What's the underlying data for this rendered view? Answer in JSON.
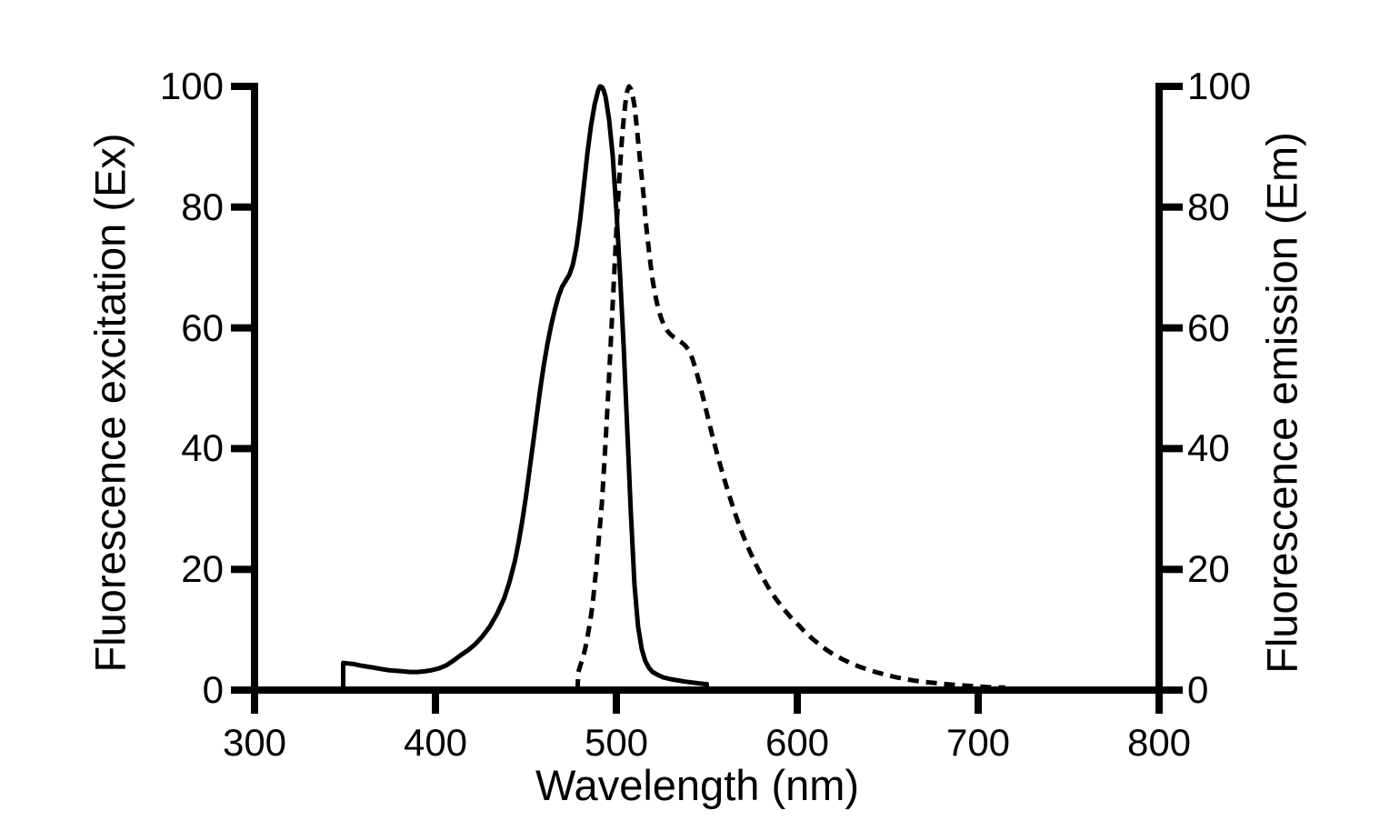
{
  "colors": {
    "foreground": "#000000",
    "background": "#ffffff"
  },
  "chart_data": {
    "type": "line",
    "title": "",
    "xlabel": "Wavelength (nm)",
    "ylabel_left": "Fluorescence excitation (Ex)",
    "ylabel_right": "Fluorescence emission (Em)",
    "xlim": [
      300,
      800
    ],
    "ylim": [
      0,
      100
    ],
    "x_ticks": [
      300,
      400,
      500,
      600,
      700,
      800
    ],
    "y_ticks_left": [
      0,
      20,
      40,
      60,
      80,
      100
    ],
    "y_ticks_right": [
      0,
      20,
      40,
      60,
      80,
      100
    ],
    "grid": false,
    "legend": "none",
    "series": [
      {
        "name": "fluorescence-excitation",
        "label": "Fluorescence excitation (Ex)",
        "axis": "left",
        "line_style": "solid",
        "color": "#000000",
        "peak_nm": 491,
        "points": [
          [
            349,
            0
          ],
          [
            349,
            4.5
          ],
          [
            352,
            4.4
          ],
          [
            355,
            4.3
          ],
          [
            358,
            4.1
          ],
          [
            362,
            3.9
          ],
          [
            366,
            3.7
          ],
          [
            370,
            3.5
          ],
          [
            374,
            3.3
          ],
          [
            378,
            3.2
          ],
          [
            382,
            3.1
          ],
          [
            386,
            3.0
          ],
          [
            390,
            3.0
          ],
          [
            394,
            3.1
          ],
          [
            398,
            3.3
          ],
          [
            402,
            3.6
          ],
          [
            406,
            4.1
          ],
          [
            410,
            4.9
          ],
          [
            414,
            5.8
          ],
          [
            418,
            6.6
          ],
          [
            422,
            7.6
          ],
          [
            426,
            8.9
          ],
          [
            430,
            10.5
          ],
          [
            434,
            12.6
          ],
          [
            438,
            15.2
          ],
          [
            441,
            18
          ],
          [
            444,
            21.5
          ],
          [
            446,
            24.5
          ],
          [
            448,
            28
          ],
          [
            450,
            32
          ],
          [
            452,
            36.5
          ],
          [
            454,
            41
          ],
          [
            456,
            45.5
          ],
          [
            458,
            50
          ],
          [
            460,
            54
          ],
          [
            462,
            57.5
          ],
          [
            464,
            60.5
          ],
          [
            466,
            63
          ],
          [
            468,
            65.2
          ],
          [
            470,
            66.8
          ],
          [
            472,
            67.8
          ],
          [
            474,
            68.8
          ],
          [
            476,
            70.5
          ],
          [
            478,
            73.5
          ],
          [
            480,
            78
          ],
          [
            482,
            83.5
          ],
          [
            484,
            89
          ],
          [
            486,
            93.5
          ],
          [
            488,
            97
          ],
          [
            490,
            99.4
          ],
          [
            491,
            100
          ],
          [
            492,
            99.9
          ],
          [
            493,
            99.3
          ],
          [
            494,
            98.3
          ],
          [
            496,
            94.5
          ],
          [
            498,
            88.5
          ],
          [
            500,
            79.5
          ],
          [
            502,
            69
          ],
          [
            504,
            57
          ],
          [
            506,
            43.5
          ],
          [
            508,
            29.5
          ],
          [
            510,
            17.5
          ],
          [
            512,
            10.5
          ],
          [
            514,
            6.8
          ],
          [
            516,
            4.8
          ],
          [
            518,
            3.7
          ],
          [
            520,
            3.0
          ],
          [
            523,
            2.5
          ],
          [
            526,
            2.1
          ],
          [
            530,
            1.8
          ],
          [
            534,
            1.6
          ],
          [
            538,
            1.4
          ],
          [
            542,
            1.25
          ],
          [
            546,
            1.1
          ],
          [
            549,
            1.0
          ],
          [
            550,
            1.0
          ],
          [
            550,
            0
          ]
        ]
      },
      {
        "name": "fluorescence-emission",
        "label": "Fluorescence emission (Em)",
        "axis": "right",
        "line_style": "dashed",
        "color": "#000000",
        "peak_nm": 507,
        "points": [
          [
            478.5,
            0
          ],
          [
            479,
            3.0
          ],
          [
            480,
            4.0
          ],
          [
            481,
            4.9
          ],
          [
            482,
            5.9
          ],
          [
            483,
            7.2
          ],
          [
            484,
            8.8
          ],
          [
            485,
            10.5
          ],
          [
            486,
            12.3
          ],
          [
            487,
            14.5
          ],
          [
            488,
            17.5
          ],
          [
            489,
            20.5
          ],
          [
            490,
            24
          ],
          [
            491,
            27.5
          ],
          [
            492,
            31
          ],
          [
            493,
            36
          ],
          [
            494,
            41
          ],
          [
            495,
            46.5
          ],
          [
            496,
            52
          ],
          [
            497,
            58
          ],
          [
            498,
            64
          ],
          [
            499,
            70
          ],
          [
            500,
            76
          ],
          [
            501,
            81.5
          ],
          [
            502,
            86.5
          ],
          [
            503,
            91
          ],
          [
            504,
            94.5
          ],
          [
            505,
            97.3
          ],
          [
            506,
            99.2
          ],
          [
            507,
            100
          ],
          [
            508,
            99.6
          ],
          [
            509,
            98.5
          ],
          [
            510,
            96.8
          ],
          [
            511,
            94
          ],
          [
            512,
            91
          ],
          [
            513,
            88
          ],
          [
            514,
            85
          ],
          [
            515,
            82
          ],
          [
            516,
            78.5
          ],
          [
            517,
            75.5
          ],
          [
            518,
            72.8
          ],
          [
            519,
            70.3
          ],
          [
            520,
            68
          ],
          [
            521,
            66.2
          ],
          [
            522,
            64.7
          ],
          [
            523,
            63.4
          ],
          [
            524,
            62.3
          ],
          [
            525,
            61.4
          ],
          [
            526,
            60.7
          ],
          [
            527,
            60.1
          ],
          [
            528,
            59.6
          ],
          [
            529,
            59.2
          ],
          [
            530,
            58.9
          ],
          [
            532,
            58.4
          ],
          [
            534,
            58.0
          ],
          [
            536,
            57.6
          ],
          [
            538,
            57.1
          ],
          [
            540,
            56.3
          ],
          [
            542,
            54.9
          ],
          [
            544,
            53
          ],
          [
            546,
            50.8
          ],
          [
            548,
            48.4
          ],
          [
            550,
            45.9
          ],
          [
            553,
            42.2
          ],
          [
            556,
            38.8
          ],
          [
            559,
            35.6
          ],
          [
            562,
            32.6
          ],
          [
            565,
            29.8
          ],
          [
            568,
            27.2
          ],
          [
            571,
            24.9
          ],
          [
            574,
            22.8
          ],
          [
            577,
            20.9
          ],
          [
            580,
            19.1
          ],
          [
            584,
            17
          ],
          [
            588,
            15.2
          ],
          [
            592,
            13.6
          ],
          [
            596,
            12.2
          ],
          [
            600,
            11
          ],
          [
            604,
            9.7
          ],
          [
            608,
            8.6
          ],
          [
            612,
            7.6
          ],
          [
            616,
            6.7
          ],
          [
            620,
            5.9
          ],
          [
            625,
            5.1
          ],
          [
            630,
            4.4
          ],
          [
            635,
            3.8
          ],
          [
            640,
            3.3
          ],
          [
            645,
            2.85
          ],
          [
            650,
            2.45
          ],
          [
            655,
            2.1
          ],
          [
            660,
            1.8
          ],
          [
            665,
            1.55
          ],
          [
            670,
            1.35
          ],
          [
            675,
            1.2
          ],
          [
            680,
            1.05
          ],
          [
            685,
            0.9
          ],
          [
            690,
            0.8
          ],
          [
            695,
            0.7
          ],
          [
            700,
            0.6
          ],
          [
            705,
            0.5
          ],
          [
            710,
            0.45
          ],
          [
            715,
            0.4
          ]
        ]
      }
    ]
  }
}
